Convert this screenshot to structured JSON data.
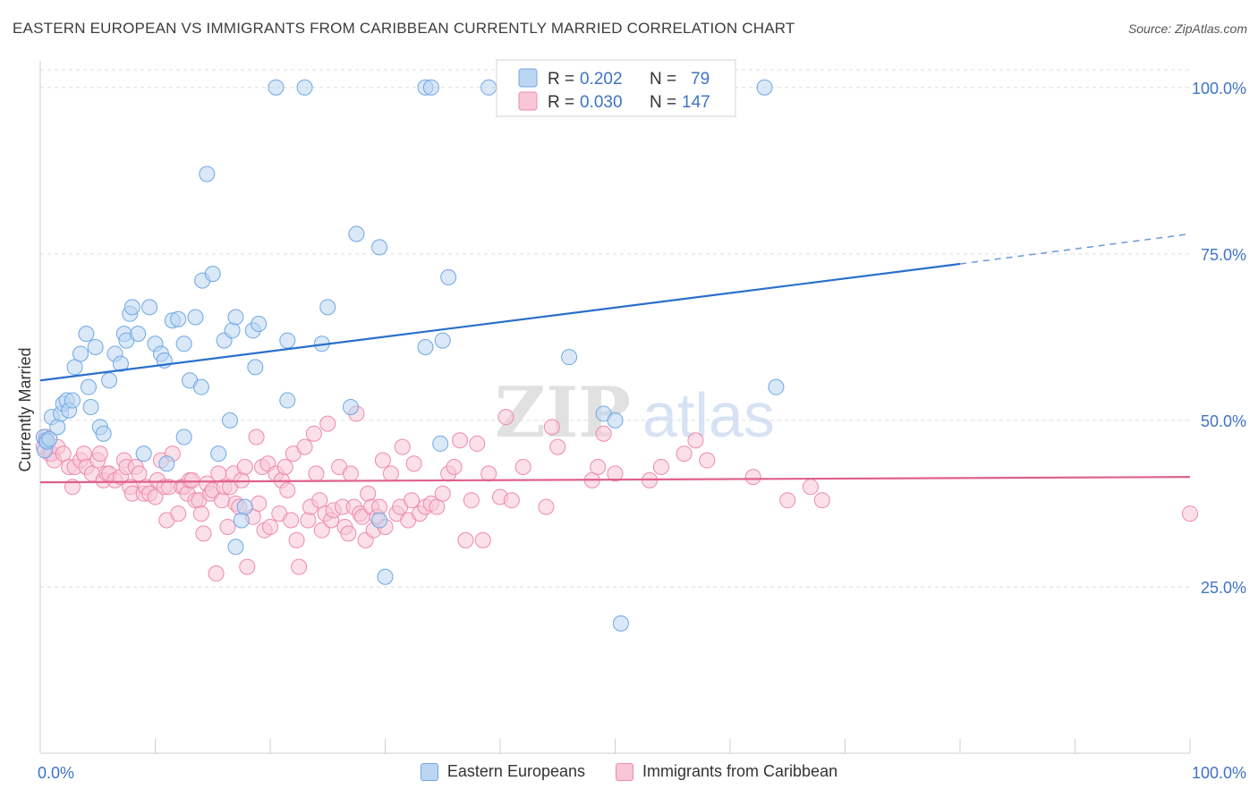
{
  "header": {
    "title": "EASTERN EUROPEAN VS IMMIGRANTS FROM CARIBBEAN CURRENTLY MARRIED CORRELATION CHART",
    "source": "Source: ZipAtlas.com"
  },
  "watermark": {
    "zip": "ZIP",
    "atlas": "atlas"
  },
  "colors": {
    "blue": "#6fa8e3",
    "blue_line": "#2a6fcc",
    "blue_fill": "#bcd5f3",
    "pink": "#ef8aaa",
    "pink_line": "#e0608a",
    "pink_fill": "#f8c6d7",
    "axis_label": "#3f73c6"
  },
  "chart_data": {
    "type": "scatter",
    "title": "EASTERN EUROPEAN VS IMMIGRANTS FROM CARIBBEAN CURRENTLY MARRIED CORRELATION CHART",
    "xlabel": "",
    "ylabel": "Currently Married",
    "xlim": [
      0,
      100
    ],
    "ylim": [
      0,
      104
    ],
    "x_tick_labels": [
      "0.0%",
      "100.0%"
    ],
    "y_ticks": [
      25,
      50,
      75,
      100
    ],
    "y_tick_labels": [
      "25.0%",
      "50.0%",
      "75.0%",
      "100.0%"
    ],
    "grid": true,
    "legend": {
      "position": "top-center",
      "rows": [
        {
          "r_label": "R =",
          "r_value": "0.202",
          "n_label": "N =",
          "n_value": "79"
        },
        {
          "r_label": "R =",
          "r_value": "0.030",
          "n_label": "N =",
          "n_value": "147"
        }
      ]
    },
    "series": [
      {
        "name": "Eastern Europeans",
        "color": "#6fa8e3",
        "trend": {
          "start": [
            0,
            56
          ],
          "end": [
            80,
            73.5
          ],
          "dashed_to": [
            100,
            78
          ]
        },
        "points": [
          [
            0.3,
            47.5
          ],
          [
            0.4,
            45.5
          ],
          [
            0.5,
            47
          ],
          [
            0.6,
            46.8
          ],
          [
            0.8,
            47.2
          ],
          [
            1,
            50.5
          ],
          [
            1.5,
            49
          ],
          [
            1.8,
            51
          ],
          [
            2,
            52.5
          ],
          [
            2.3,
            53
          ],
          [
            2.5,
            51.5
          ],
          [
            2.8,
            53
          ],
          [
            3,
            58
          ],
          [
            3.5,
            60
          ],
          [
            4,
            63
          ],
          [
            4.2,
            55
          ],
          [
            4.4,
            52
          ],
          [
            4.8,
            61
          ],
          [
            5.2,
            49
          ],
          [
            5.5,
            48
          ],
          [
            6,
            56
          ],
          [
            6.5,
            60
          ],
          [
            7,
            58.5
          ],
          [
            7.3,
            63
          ],
          [
            7.5,
            62
          ],
          [
            7.8,
            66
          ],
          [
            8,
            67
          ],
          [
            8.5,
            63
          ],
          [
            9,
            45
          ],
          [
            9.5,
            67
          ],
          [
            10,
            61.5
          ],
          [
            10.5,
            60
          ],
          [
            10.8,
            59
          ],
          [
            11,
            43.5
          ],
          [
            11.5,
            65
          ],
          [
            12,
            65.2
          ],
          [
            12.5,
            61.5
          ],
          [
            12.5,
            47.5
          ],
          [
            13,
            56
          ],
          [
            13.5,
            65.5
          ],
          [
            14,
            55
          ],
          [
            14.1,
            71
          ],
          [
            14.5,
            87
          ],
          [
            15,
            72
          ],
          [
            15.5,
            45
          ],
          [
            16,
            62
          ],
          [
            16.5,
            50
          ],
          [
            16.7,
            63.5
          ],
          [
            17,
            65.5
          ],
          [
            17,
            31
          ],
          [
            17.5,
            35
          ],
          [
            17.8,
            37
          ],
          [
            18.5,
            63.5
          ],
          [
            18.7,
            58
          ],
          [
            19,
            64.5
          ],
          [
            20.5,
            100
          ],
          [
            21.5,
            62
          ],
          [
            21.5,
            53
          ],
          [
            23,
            100
          ],
          [
            24.5,
            61.5
          ],
          [
            25,
            67
          ],
          [
            27,
            52
          ],
          [
            27.5,
            78
          ],
          [
            29.5,
            35
          ],
          [
            29.5,
            76
          ],
          [
            30,
            26.5
          ],
          [
            33.5,
            61
          ],
          [
            33.5,
            100
          ],
          [
            34,
            100
          ],
          [
            34.8,
            46.5
          ],
          [
            35,
            62
          ],
          [
            35.5,
            71.5
          ],
          [
            39,
            100
          ],
          [
            46,
            59.5
          ],
          [
            49,
            51
          ],
          [
            50,
            50
          ],
          [
            50.5,
            19.5
          ],
          [
            63,
            100
          ],
          [
            64,
            55
          ]
        ]
      },
      {
        "name": "Immigrants from Caribbean",
        "color": "#ef8aaa",
        "trend": {
          "start": [
            0,
            40.7
          ],
          "end": [
            100,
            41.5
          ]
        },
        "points": [
          [
            0.3,
            46
          ],
          [
            0.5,
            47.5
          ],
          [
            0.8,
            45
          ],
          [
            1,
            45
          ],
          [
            1.2,
            44
          ],
          [
            1.5,
            46
          ],
          [
            2,
            45
          ],
          [
            2.5,
            43
          ],
          [
            2.8,
            40
          ],
          [
            3,
            43
          ],
          [
            3.5,
            44
          ],
          [
            3.8,
            45
          ],
          [
            4,
            43
          ],
          [
            4.5,
            42
          ],
          [
            5,
            44
          ],
          [
            5.2,
            45
          ],
          [
            5.5,
            41
          ],
          [
            5.8,
            42
          ],
          [
            6,
            42
          ],
          [
            6.5,
            41
          ],
          [
            7,
            41.5
          ],
          [
            7.3,
            44
          ],
          [
            7.5,
            43
          ],
          [
            7.8,
            40
          ],
          [
            8,
            39
          ],
          [
            8.3,
            43
          ],
          [
            8.6,
            42
          ],
          [
            9,
            39
          ],
          [
            9.2,
            40
          ],
          [
            9.5,
            39
          ],
          [
            10,
            38.5
          ],
          [
            10.2,
            41
          ],
          [
            10.5,
            44
          ],
          [
            10.8,
            40
          ],
          [
            11,
            35
          ],
          [
            11.2,
            40
          ],
          [
            11.5,
            45
          ],
          [
            12,
            36
          ],
          [
            12.3,
            40
          ],
          [
            12.5,
            40
          ],
          [
            12.8,
            39
          ],
          [
            13,
            41
          ],
          [
            13.2,
            41
          ],
          [
            13.5,
            38
          ],
          [
            13.8,
            38
          ],
          [
            14,
            36
          ],
          [
            14.2,
            33
          ],
          [
            14.5,
            40.5
          ],
          [
            14.8,
            39
          ],
          [
            15,
            39.5
          ],
          [
            15.3,
            27
          ],
          [
            15.5,
            42
          ],
          [
            15.8,
            38
          ],
          [
            16,
            40
          ],
          [
            16.3,
            34
          ],
          [
            16.5,
            40
          ],
          [
            16.8,
            42
          ],
          [
            17,
            37.5
          ],
          [
            17.3,
            37
          ],
          [
            17.5,
            41
          ],
          [
            17.8,
            43
          ],
          [
            18,
            28
          ],
          [
            18.5,
            35.5
          ],
          [
            18.8,
            47.5
          ],
          [
            19,
            37.5
          ],
          [
            19.3,
            43
          ],
          [
            19.5,
            33.5
          ],
          [
            19.8,
            43.5
          ],
          [
            20,
            34
          ],
          [
            20.5,
            42
          ],
          [
            20.8,
            36
          ],
          [
            21,
            41
          ],
          [
            21.3,
            43
          ],
          [
            21.5,
            39.5
          ],
          [
            21.8,
            35
          ],
          [
            22,
            45
          ],
          [
            22.3,
            32
          ],
          [
            22.5,
            28
          ],
          [
            23,
            46
          ],
          [
            23.3,
            35
          ],
          [
            23.5,
            37
          ],
          [
            23.8,
            48
          ],
          [
            24,
            42
          ],
          [
            24.3,
            38
          ],
          [
            24.5,
            33.5
          ],
          [
            24.8,
            36
          ],
          [
            25,
            49.5
          ],
          [
            25.3,
            35
          ],
          [
            25.5,
            36.5
          ],
          [
            26,
            43
          ],
          [
            26.3,
            37
          ],
          [
            26.5,
            34
          ],
          [
            26.8,
            33
          ],
          [
            27,
            42
          ],
          [
            27.3,
            37
          ],
          [
            27.5,
            51
          ],
          [
            27.8,
            36
          ],
          [
            28,
            35.5
          ],
          [
            28.3,
            32
          ],
          [
            28.5,
            39
          ],
          [
            28.8,
            37
          ],
          [
            29,
            33.5
          ],
          [
            29.3,
            35.5
          ],
          [
            29.5,
            37
          ],
          [
            29.8,
            44
          ],
          [
            30,
            34
          ],
          [
            30.5,
            42
          ],
          [
            31,
            36
          ],
          [
            31.3,
            37
          ],
          [
            31.5,
            46
          ],
          [
            32,
            35
          ],
          [
            32.3,
            38
          ],
          [
            32.5,
            43.5
          ],
          [
            33,
            36
          ],
          [
            33.5,
            37
          ],
          [
            34,
            37.5
          ],
          [
            34.5,
            37
          ],
          [
            35,
            39
          ],
          [
            35.5,
            42
          ],
          [
            36,
            43
          ],
          [
            36.5,
            47
          ],
          [
            37,
            32
          ],
          [
            37.5,
            38
          ],
          [
            38,
            46.5
          ],
          [
            38.5,
            32
          ],
          [
            39,
            42
          ],
          [
            40,
            38.5
          ],
          [
            40.5,
            50.5
          ],
          [
            41,
            38
          ],
          [
            42,
            43
          ],
          [
            44,
            37
          ],
          [
            44.5,
            49
          ],
          [
            45,
            46
          ],
          [
            48,
            41
          ],
          [
            48.5,
            43
          ],
          [
            49,
            48
          ],
          [
            50,
            42
          ],
          [
            53,
            41
          ],
          [
            54,
            43
          ],
          [
            56,
            45
          ],
          [
            57,
            47
          ],
          [
            58,
            44
          ],
          [
            62,
            41.5
          ],
          [
            65,
            38
          ],
          [
            67,
            40
          ],
          [
            68,
            38
          ],
          [
            100,
            36
          ]
        ]
      }
    ]
  }
}
